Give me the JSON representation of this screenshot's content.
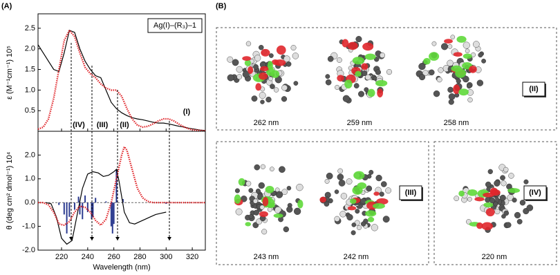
{
  "figure": {
    "panel_a": "(A)",
    "panel_b": "(B)"
  },
  "chart_data": [
    {
      "type": "line",
      "y_label": "ε (M⁻¹cm⁻¹) 10⁵",
      "annotation": "Ag(I)–(R₃)–1",
      "band_labels": [
        "(IV)",
        "(III)",
        "(II)",
        "(I)"
      ],
      "xlim": [
        202,
        330
      ],
      "xticks": [
        220,
        240,
        260,
        280,
        300,
        320
      ],
      "ylim": [
        0,
        2.85
      ],
      "yticks": [
        0.5,
        {
          "value": 1,
          "label": "1.0"
        },
        1.5,
        {
          "value": 2,
          "label": "2.0"
        },
        2.5
      ],
      "series": [
        {
          "color": "#000000",
          "dashed": false,
          "x": [
            202,
            206,
            210,
            214,
            218,
            222,
            226,
            230,
            234,
            238,
            242,
            246,
            250,
            254,
            258,
            262,
            266,
            270,
            274,
            278,
            282,
            286,
            290,
            294,
            298,
            302,
            306,
            310,
            314,
            318,
            322,
            326,
            330
          ],
          "values": [
            2.1,
            1.9,
            1.7,
            1.5,
            1.45,
            1.9,
            2.45,
            2.4,
            2.0,
            1.7,
            1.5,
            1.35,
            1.3,
            1.0,
            0.7,
            0.55,
            0.45,
            0.38,
            0.33,
            0.3,
            0.28,
            0.25,
            0.22,
            0.2,
            0.2,
            0.18,
            0.15,
            0.12,
            0.1,
            0.07,
            0.05,
            0.03,
            0.02
          ]
        },
        {
          "color": "#e0262b",
          "dashed": true,
          "x": [
            202,
            206,
            210,
            214,
            218,
            222,
            226,
            230,
            234,
            238,
            242,
            246,
            250,
            254,
            258,
            262,
            266,
            270,
            274,
            278,
            282,
            286,
            290,
            294,
            298,
            302,
            306,
            310,
            314,
            318,
            322,
            326,
            330
          ],
          "values": [
            0.05,
            0.1,
            0.3,
            0.8,
            1.5,
            2.2,
            2.45,
            2.3,
            1.9,
            1.55,
            1.4,
            1.3,
            1.15,
            1.05,
            1.0,
            1.0,
            0.85,
            0.55,
            0.3,
            0.15,
            0.1,
            0.12,
            0.18,
            0.25,
            0.3,
            0.3,
            0.25,
            0.17,
            0.1,
            0.05,
            0.03,
            0.02,
            0.01
          ]
        }
      ]
    },
    {
      "type": "line",
      "y_label": "θ (deg cm² dmol⁻¹) 10⁴",
      "x_label": "Wavelength (nm)",
      "xlim": [
        202,
        330
      ],
      "xticks": [
        220,
        240,
        260,
        280,
        300,
        320
      ],
      "ylim": [
        -2,
        3
      ],
      "yticks": [
        {
          "value": -2,
          "label": "-2.0"
        },
        {
          "value": -1,
          "label": "-1.0"
        },
        {
          "value": 0,
          "label": "0.0"
        },
        {
          "value": 1,
          "label": "1.0"
        },
        {
          "value": 2,
          "label": "2.0"
        }
      ],
      "series": [
        {
          "color": "#000000",
          "dashed": false,
          "x": [
            208,
            212,
            216,
            220,
            224,
            228,
            232,
            236,
            240,
            244,
            248,
            252,
            256,
            260,
            262,
            264,
            268,
            272,
            276,
            280,
            284,
            288,
            292,
            296,
            300
          ],
          "values": [
            0,
            -0.05,
            -0.6,
            -1.5,
            -1.75,
            -1.6,
            -0.5,
            0.6,
            1.2,
            1.3,
            1.25,
            1.1,
            1.15,
            1.3,
            1.4,
            0.9,
            -0.4,
            -0.85,
            -0.9,
            -0.8,
            -0.7,
            -0.6,
            -0.5,
            -0.45,
            -0.4
          ]
        },
        {
          "color": "#e0262b",
          "dashed": true,
          "x": [
            202,
            206,
            210,
            214,
            218,
            222,
            226,
            230,
            234,
            238,
            242,
            246,
            250,
            254,
            258,
            262,
            266,
            268,
            270,
            274,
            278,
            282,
            286,
            290,
            294,
            300,
            310,
            320,
            330
          ],
          "values": [
            0,
            0,
            -0.1,
            -0.4,
            -0.9,
            -0.95,
            -0.8,
            -0.4,
            -0.15,
            -0.2,
            -0.4,
            -0.75,
            -0.95,
            -0.7,
            0,
            1.0,
            2.0,
            2.35,
            2.2,
            1.4,
            0.6,
            0.2,
            0.05,
            0,
            0,
            0,
            0,
            0,
            0
          ]
        }
      ],
      "sticks": {
        "color": "#2b3a8f",
        "x": [
          218,
          222,
          224,
          226,
          230,
          233,
          234,
          236,
          238,
          240,
          243,
          244,
          246,
          254,
          258,
          259,
          260,
          262,
          267,
          300
        ],
        "values": [
          -0.1,
          -0.5,
          -1.3,
          -0.6,
          -0.3,
          0.25,
          -0.5,
          -0.7,
          0.3,
          -0.4,
          -0.7,
          -0.6,
          0.2,
          0.05,
          -1.0,
          -1.3,
          -0.9,
          1.4,
          0.15,
          -0.05
        ]
      }
    }
  ],
  "molecules": [
    "262 nm",
    "259 nm",
    "258 nm",
    "243 nm",
    "242 nm",
    "220 nm"
  ],
  "groups": [
    "(II)",
    "(III)",
    "(IV)"
  ]
}
